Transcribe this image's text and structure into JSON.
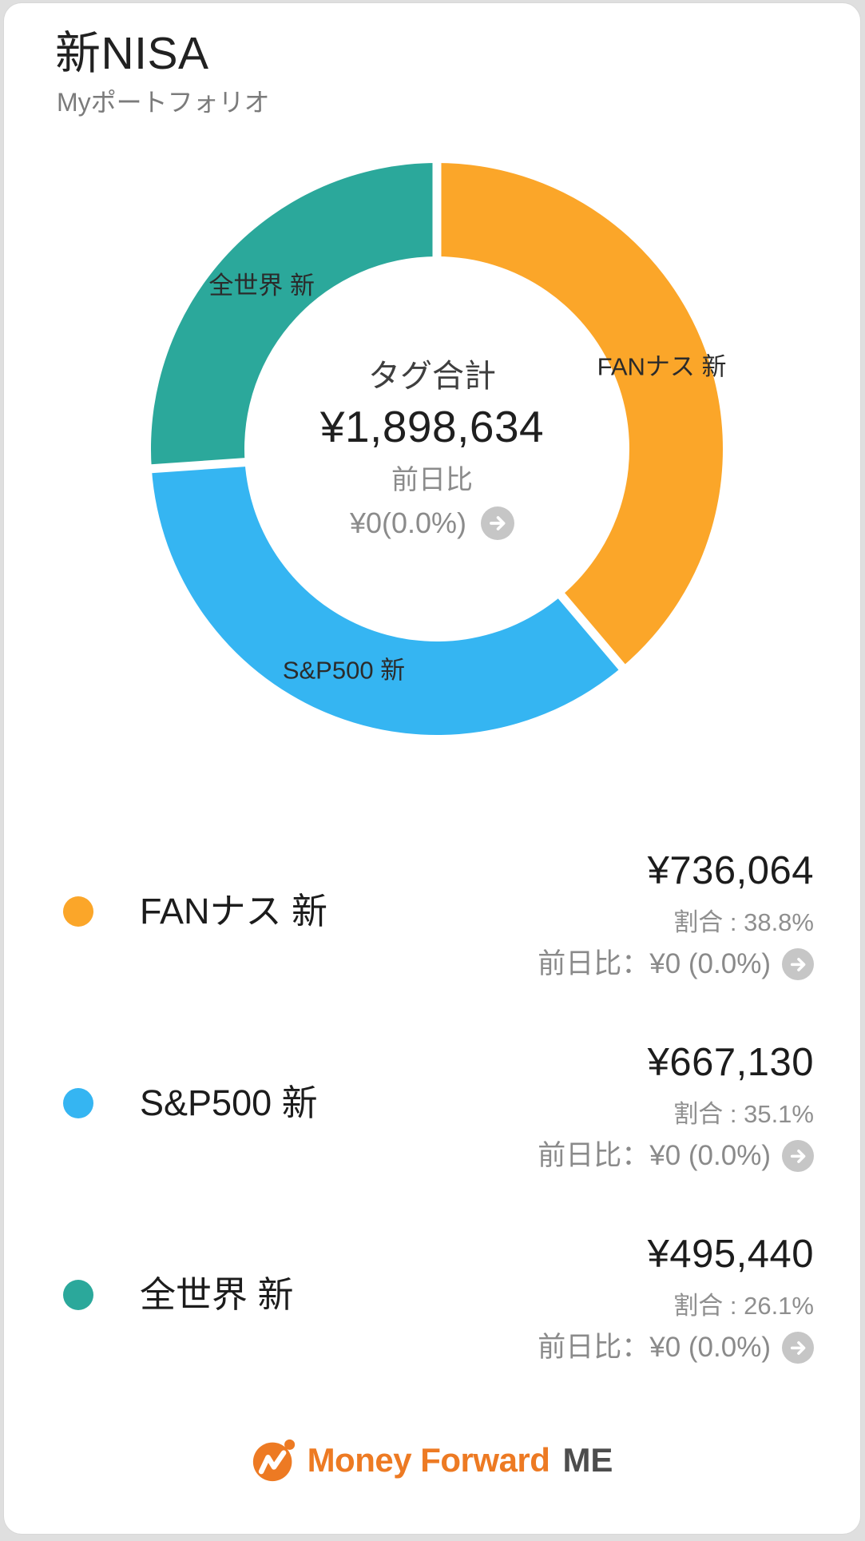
{
  "header": {
    "title": "新NISA",
    "subtitle": "Myポートフォリオ"
  },
  "chart_data": {
    "type": "pie",
    "donut": true,
    "start_angle_deg": 0,
    "direction": "clockwise",
    "legend_position": "below",
    "center": {
      "total_label": "タグ合計",
      "total_value": "¥1,898,634",
      "day_change_label": "前日比",
      "day_change_value": "¥0(0.0%)"
    },
    "series": [
      {
        "name": "FANナス 新",
        "value": 736064,
        "percent": 38.8,
        "color": "#FBA629"
      },
      {
        "name": "S&P500 新",
        "value": 667130,
        "percent": 35.1,
        "color": "#35B5F2"
      },
      {
        "name": "全世界 新",
        "value": 495440,
        "percent": 26.1,
        "color": "#2BA89B"
      }
    ]
  },
  "rows": [
    {
      "name": "FANナス 新",
      "amount": "¥736,064",
      "ratio_text": "割合 : 38.8%",
      "day_change_text": "前日比：¥0 (0.0%)",
      "color": "#FBA629"
    },
    {
      "name": "S&P500 新",
      "amount": "¥667,130",
      "ratio_text": "割合 : 35.1%",
      "day_change_text": "前日比：¥0 (0.0%)",
      "color": "#35B5F2"
    },
    {
      "name": "全世界 新",
      "amount": "¥495,440",
      "ratio_text": "割合 : 26.1%",
      "day_change_text": "前日比：¥0 (0.0%)",
      "color": "#2BA89B"
    }
  ],
  "footer": {
    "logo_text": "Money Forward",
    "logo_suffix": "ME"
  },
  "colors": {
    "orange": "#FBA629",
    "blue": "#35B5F2",
    "teal": "#2BA89B",
    "logo_orange": "#ED7A23",
    "arrow_circle_gray": "#C6C6C6",
    "card_background": "#FFFFFF",
    "frame_background": "#DFDFDF"
  }
}
